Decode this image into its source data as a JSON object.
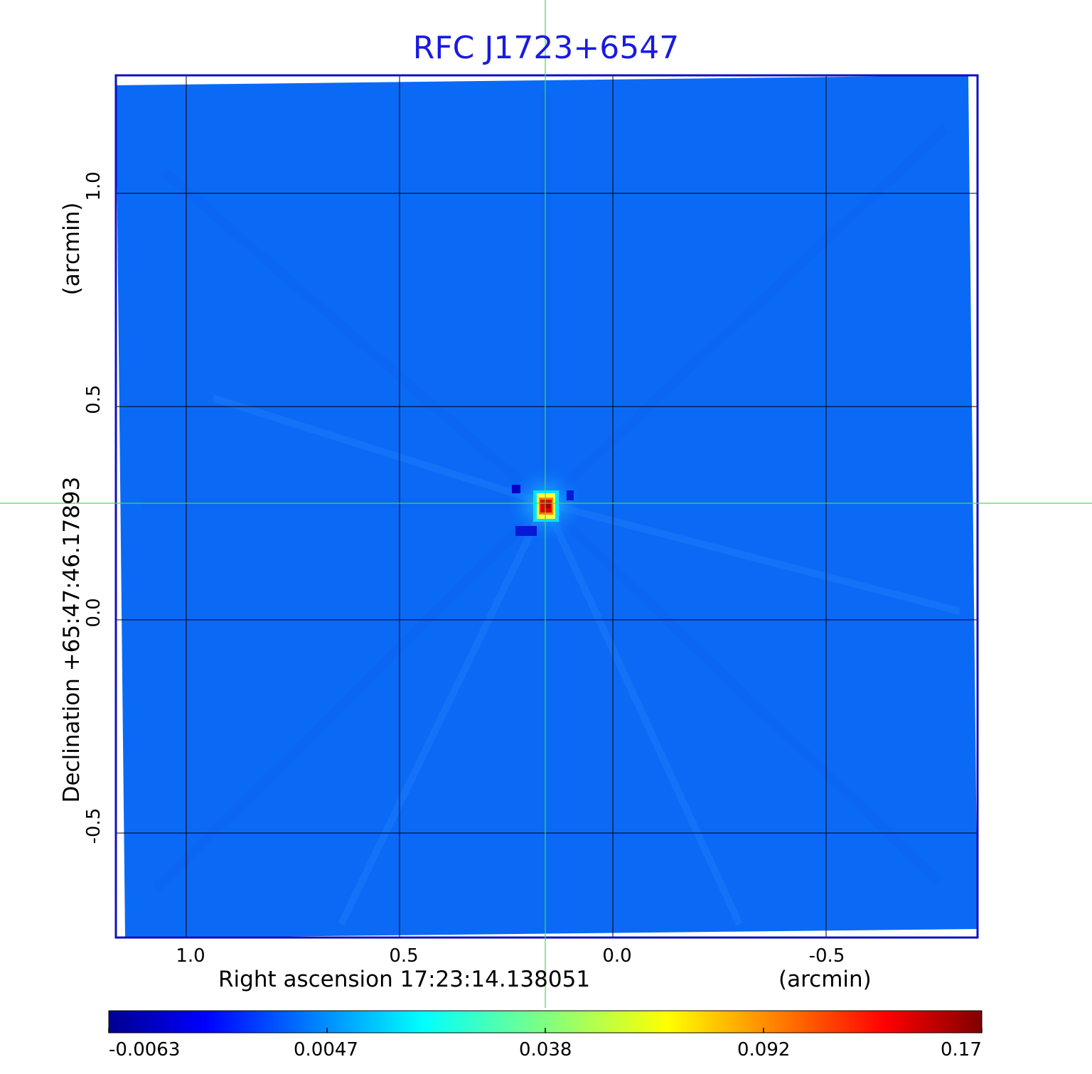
{
  "title": "RFC J1723+6547",
  "x_axis": {
    "label": "Right ascension  17:23:14.138051",
    "unit": "(arcmin)",
    "ticks": [
      "1.0",
      "0.5",
      "0.0",
      "-0.5"
    ],
    "tick_values": [
      1.0,
      0.5,
      0.0,
      -0.5
    ]
  },
  "y_axis": {
    "label": "Declination  +65:47:46.17893",
    "unit": "(arcmin)",
    "ticks": [
      "1.0",
      "0.5",
      "0.0",
      "-0.5"
    ],
    "tick_values": [
      1.0,
      0.5,
      0.0,
      -0.5
    ]
  },
  "colorbar": {
    "ticks": [
      "-0.0063",
      "0.0047",
      "0.038",
      "0.092",
      "0.17"
    ],
    "colormap": "jet"
  },
  "crosshair_color": "#40e040",
  "frame_color": "#1010c0",
  "background_map_color": "#0a6af6",
  "source": {
    "x_arcmin": 0.16,
    "y_arcmin": 0.27
  }
}
